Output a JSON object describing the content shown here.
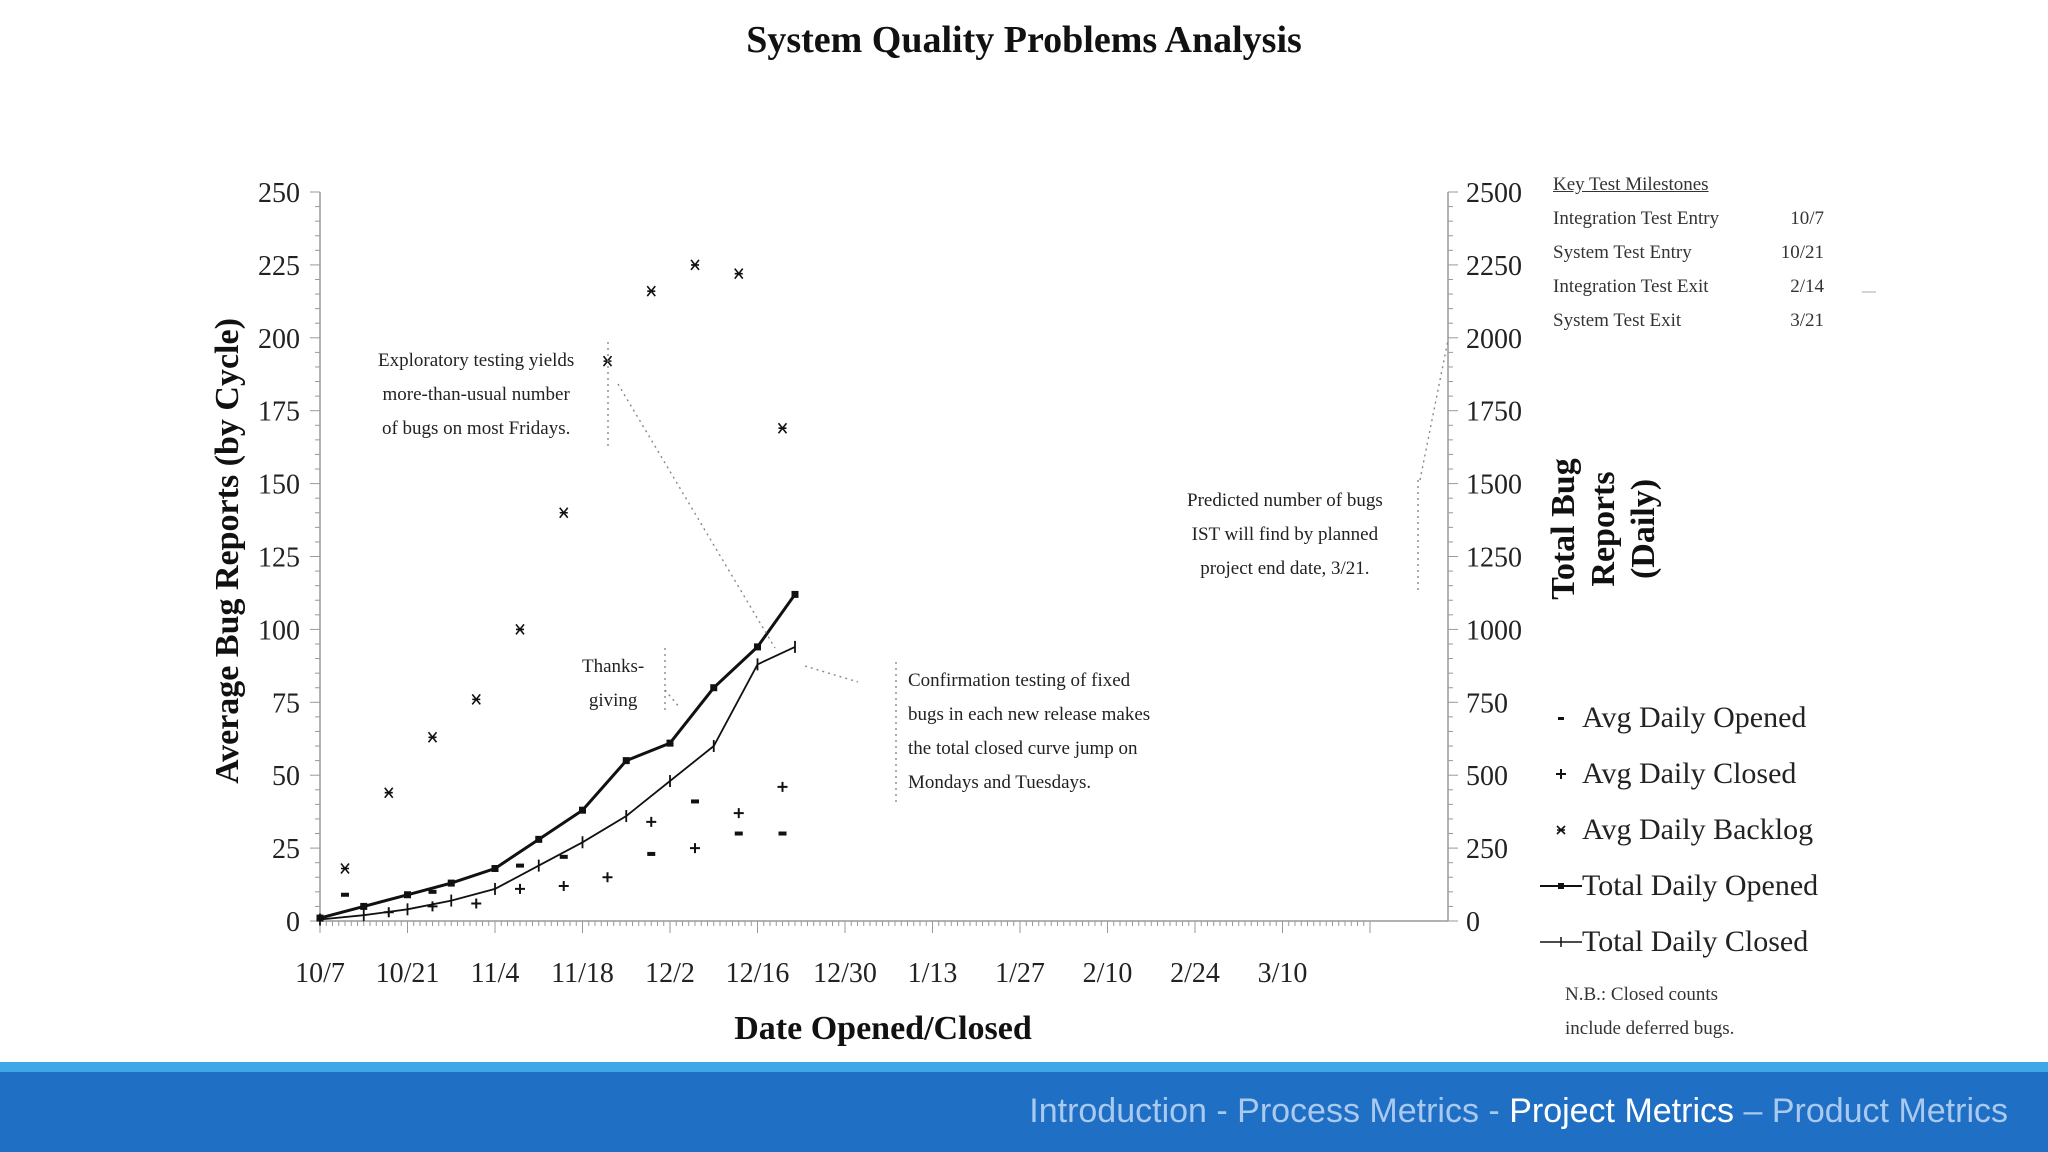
{
  "slide": {
    "title": "System Quality Problems Analysis",
    "footer": {
      "items": [
        {
          "label": "Introduction - Process Metrics - ",
          "active": false
        },
        {
          "label": "Project Metrics",
          "active": true
        },
        {
          "label": " – Product Metrics",
          "active": false
        }
      ]
    }
  },
  "chart_data": {
    "type": "scatter",
    "title": "System Quality Problems Analysis",
    "xlabel": "Date Opened/Closed",
    "ylabel_left": "Average Bug Reports (by Cycle)",
    "ylabel_right": "Total Bug\nReports\n(Daily)",
    "x_ticks": [
      "10/7",
      "10/21",
      "11/4",
      "11/18",
      "12/2",
      "12/16",
      "12/30",
      "1/13",
      "1/27",
      "2/10",
      "2/24",
      "3/10"
    ],
    "y_left_ticks": [
      0,
      25,
      50,
      75,
      100,
      125,
      150,
      175,
      200,
      225,
      250
    ],
    "y_right_ticks": [
      0,
      250,
      500,
      750,
      1000,
      1250,
      1500,
      1750,
      2000,
      2250,
      2500
    ],
    "ylim_left": [
      0,
      250
    ],
    "ylim_right": [
      0,
      2500
    ],
    "series": [
      {
        "name": "Avg Daily Opened",
        "marker": "-",
        "axis": "left",
        "points": [
          [
            "10/11",
            9
          ],
          [
            "10/25",
            10
          ],
          [
            "11/8",
            19
          ],
          [
            "11/15",
            22
          ],
          [
            "11/29",
            23
          ],
          [
            "12/6",
            41
          ],
          [
            "12/13",
            30
          ],
          [
            "12/20",
            30
          ]
        ]
      },
      {
        "name": "Avg Daily Closed",
        "marker": "+",
        "axis": "left",
        "points": [
          [
            "10/18",
            3
          ],
          [
            "10/25",
            5
          ],
          [
            "11/1",
            6
          ],
          [
            "11/8",
            11
          ],
          [
            "11/15",
            12
          ],
          [
            "11/22",
            15
          ],
          [
            "11/29",
            34
          ],
          [
            "12/6",
            25
          ],
          [
            "12/13",
            37
          ],
          [
            "12/20",
            46
          ]
        ]
      },
      {
        "name": "Avg Daily Backlog",
        "marker": "x",
        "axis": "left",
        "points": [
          [
            "10/11",
            18
          ],
          [
            "10/18",
            44
          ],
          [
            "10/25",
            63
          ],
          [
            "11/1",
            76
          ],
          [
            "11/8",
            100
          ],
          [
            "11/15",
            140
          ],
          [
            "11/22",
            192
          ],
          [
            "11/29",
            216
          ],
          [
            "12/6",
            225
          ],
          [
            "12/13",
            222
          ],
          [
            "12/20",
            169
          ]
        ]
      },
      {
        "name": "Total Daily Opened",
        "marker": "line-dot",
        "axis": "right",
        "points": [
          [
            "10/7",
            10
          ],
          [
            "10/14",
            50
          ],
          [
            "10/21",
            90
          ],
          [
            "10/28",
            130
          ],
          [
            "11/4",
            180
          ],
          [
            "11/11",
            280
          ],
          [
            "11/18",
            380
          ],
          [
            "11/25",
            550
          ],
          [
            "12/2",
            610
          ],
          [
            "12/9",
            800
          ],
          [
            "12/16",
            940
          ],
          [
            "12/22",
            1120
          ]
        ]
      },
      {
        "name": "Total Daily Closed",
        "marker": "line-plus",
        "axis": "right",
        "points": [
          [
            "10/7",
            5
          ],
          [
            "10/14",
            20
          ],
          [
            "10/21",
            40
          ],
          [
            "10/28",
            70
          ],
          [
            "11/4",
            110
          ],
          [
            "11/11",
            190
          ],
          [
            "11/18",
            270
          ],
          [
            "11/25",
            360
          ],
          [
            "12/2",
            480
          ],
          [
            "12/9",
            600
          ],
          [
            "12/16",
            880
          ],
          [
            "12/22",
            940
          ]
        ]
      }
    ],
    "annotations": [
      "Exploratory testing yields\nmore-than-usual number\nof bugs on most Fridays.",
      "Thanks-\ngiving",
      "Confirmation testing of fixed\nbugs in each new release makes\nthe total closed curve jump on\nMondays and Tuesdays.",
      "Predicted number of bugs\nIST will find by planned\nproject end date, 3/21."
    ],
    "milestones": {
      "header": "Key Test Milestones",
      "items": [
        {
          "name": "Integration Test Entry",
          "date": "10/7"
        },
        {
          "name": "System Test Entry",
          "date": "10/21"
        },
        {
          "name": "Integration Test Exit",
          "date": "2/14"
        },
        {
          "name": "System Test Exit",
          "date": "3/21"
        }
      ]
    },
    "note": "N.B.: Closed counts\ninclude deferred bugs."
  }
}
